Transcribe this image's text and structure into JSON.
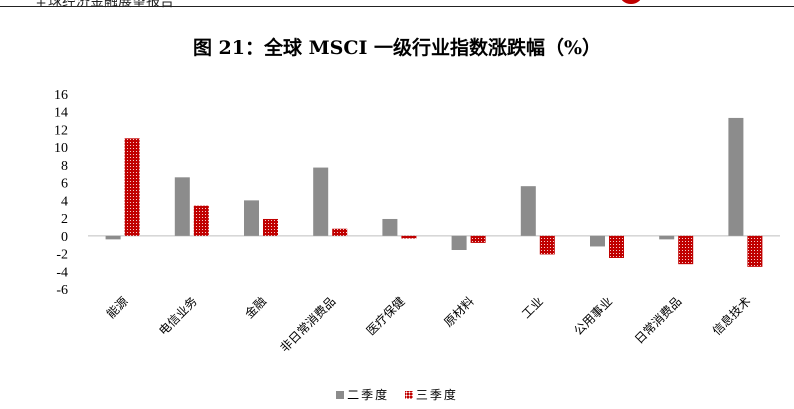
{
  "header": {
    "report_title": "全球经济金融展望报告"
  },
  "title": "图 21：全球 MSCI 一级行业指数涨跌幅（%）",
  "colors": {
    "q2": "#8c8c8c",
    "q3": "#c00000"
  },
  "chart_data": {
    "type": "bar",
    "categories": [
      "能源",
      "电信业务",
      "金融",
      "非日常消费品",
      "医疗保健",
      "原材料",
      "工业",
      "公用事业",
      "日常消费品",
      "信息技术"
    ],
    "series": [
      {
        "name": "二季度",
        "values": [
          -0.4,
          6.6,
          4.0,
          7.7,
          1.9,
          -1.6,
          5.6,
          -1.2,
          -0.4,
          13.3
        ]
      },
      {
        "name": "三季度",
        "values": [
          11.0,
          3.4,
          1.9,
          0.8,
          -0.3,
          -0.8,
          -2.1,
          -2.5,
          -3.2,
          -3.5
        ]
      }
    ],
    "yticks": [
      16,
      14,
      12,
      10,
      8,
      6,
      4,
      2,
      0,
      -2,
      -4,
      -6
    ],
    "ylim": [
      -6,
      16
    ],
    "legend_position": "bottom",
    "grid": false
  }
}
